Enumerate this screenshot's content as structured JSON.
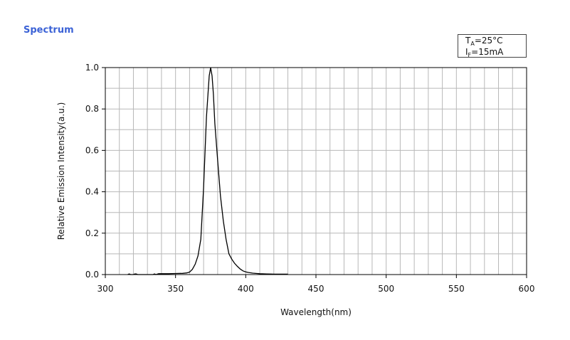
{
  "section": {
    "title": "Spectrum"
  },
  "conditions": {
    "temp": {
      "symbol": "T",
      "subscript": "A",
      "value": "=25°C"
    },
    "current": {
      "symbol": "I",
      "subscript": "F",
      "value": "=15mA"
    }
  },
  "chart_data": {
    "type": "line",
    "xlabel": "Wavelength(nm)",
    "ylabel": "Relative Emission Intensity(a.u.)",
    "xlim": [
      300,
      600
    ],
    "ylim": [
      0,
      1.0
    ],
    "x_ticks": [
      300,
      350,
      400,
      450,
      500,
      550,
      600
    ],
    "x_tick_labels": [
      "300",
      "350",
      "400",
      "450",
      "500",
      "550",
      "600"
    ],
    "y_ticks": [
      0,
      0.2,
      0.4,
      0.6,
      0.8,
      1.0
    ],
    "y_tick_labels": [
      "0.0",
      "0.2",
      "0.4",
      "0.6",
      "0.8",
      "1.0"
    ],
    "x_minor_step": 10,
    "y_minor_step": 0.1,
    "grid": true,
    "series": [
      {
        "color": "#000000",
        "x": [
          316,
          317,
          318,
          320,
          321,
          322,
          323,
          334,
          335,
          336,
          338,
          340,
          345,
          350,
          355,
          358,
          360,
          362,
          364,
          366,
          368,
          370,
          372,
          374,
          375,
          376,
          377,
          378,
          380,
          382,
          384,
          386,
          388,
          390,
          392,
          394,
          396,
          398,
          400,
          402,
          405,
          408,
          410,
          415,
          420,
          425,
          430
        ],
        "y": [
          0.0,
          0.003,
          0.0,
          0.0,
          0.003,
          0.003,
          0.0,
          0.0,
          0.003,
          0.0,
          0.004,
          0.004,
          0.004,
          0.005,
          0.006,
          0.008,
          0.012,
          0.025,
          0.05,
          0.09,
          0.17,
          0.42,
          0.76,
          0.96,
          1.0,
          0.96,
          0.87,
          0.73,
          0.55,
          0.38,
          0.26,
          0.17,
          0.1,
          0.075,
          0.055,
          0.04,
          0.027,
          0.018,
          0.013,
          0.01,
          0.007,
          0.005,
          0.004,
          0.003,
          0.002,
          0.002,
          0.002
        ]
      }
    ]
  }
}
